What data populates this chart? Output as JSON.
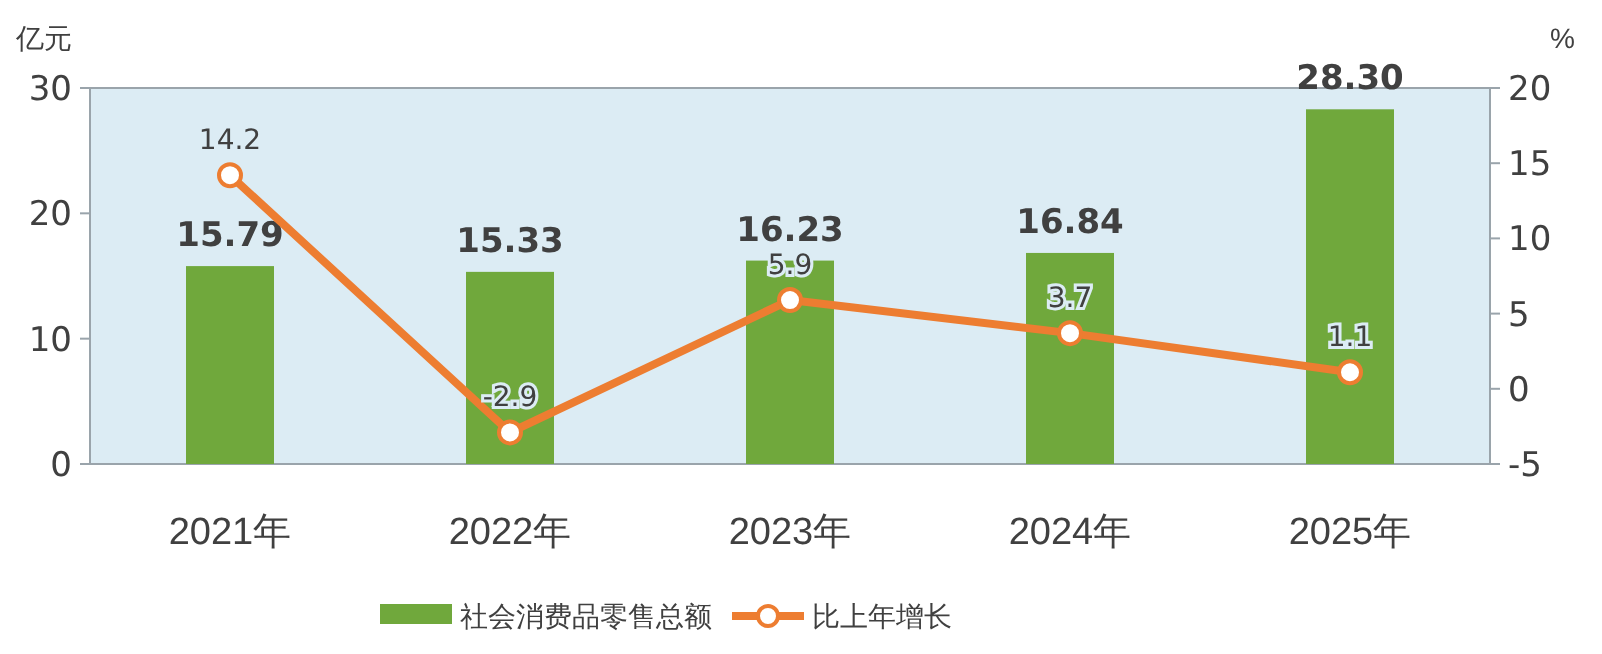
{
  "chart_data": {
    "type": "bar",
    "categories": [
      "2021年",
      "2022年",
      "2023年",
      "2024年",
      "2025年"
    ],
    "ylabel": "亿元",
    "y2label": "%",
    "ylim": [
      0,
      30
    ],
    "yticks": [
      0,
      10,
      20,
      30
    ],
    "y2lim": [
      -5,
      20
    ],
    "y2ticks": [
      -5,
      0,
      5,
      10,
      15,
      20
    ],
    "grid": false,
    "legend": "bottom",
    "marker": "circle",
    "series": [
      {
        "name": "社会消费品零售总额",
        "color": "#70a83c",
        "values": [
          15.79,
          15.33,
          16.23,
          16.84,
          28.3
        ],
        "value_labels": [
          "15.79",
          "15.33",
          "16.23",
          "16.84",
          "28.30"
        ]
      },
      {
        "name": "比上年增长",
        "type": "line",
        "axis": "y2",
        "color": "#ed7d31",
        "values": [
          14.2,
          -2.9,
          5.9,
          3.7,
          1.1
        ],
        "value_labels": [
          "14.2",
          "-2.9",
          "5.9",
          "3.7",
          "1.1"
        ]
      }
    ]
  }
}
